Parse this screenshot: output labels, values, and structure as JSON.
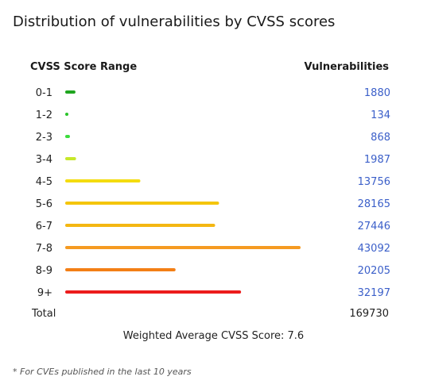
{
  "title": "Distribution of vulnerabilities by CVSS scores",
  "headers": {
    "range": "CVSS Score Range",
    "count": "Vulnerabilities"
  },
  "total": {
    "label": "Total",
    "value": "169730"
  },
  "weighted_average": "Weighted Average CVSS Score: 7.6",
  "footnote": "* For CVEs published in the last 10 years",
  "chart_data": {
    "type": "bar",
    "orientation": "horizontal",
    "categories": [
      "0-1",
      "1-2",
      "2-3",
      "3-4",
      "4-5",
      "5-6",
      "6-7",
      "7-8",
      "8-9",
      "9+"
    ],
    "values": [
      1880,
      134,
      868,
      1987,
      13756,
      28165,
      27446,
      43092,
      20205,
      32197
    ],
    "colors": [
      "#1fa51f",
      "#2bc42b",
      "#3ddc3d",
      "#c7e82a",
      "#f4dc10",
      "#f4c50c",
      "#f4b712",
      "#f59a21",
      "#f37f16",
      "#ec1c1c"
    ],
    "xlim": [
      0,
      43092
    ],
    "grid": false
  }
}
